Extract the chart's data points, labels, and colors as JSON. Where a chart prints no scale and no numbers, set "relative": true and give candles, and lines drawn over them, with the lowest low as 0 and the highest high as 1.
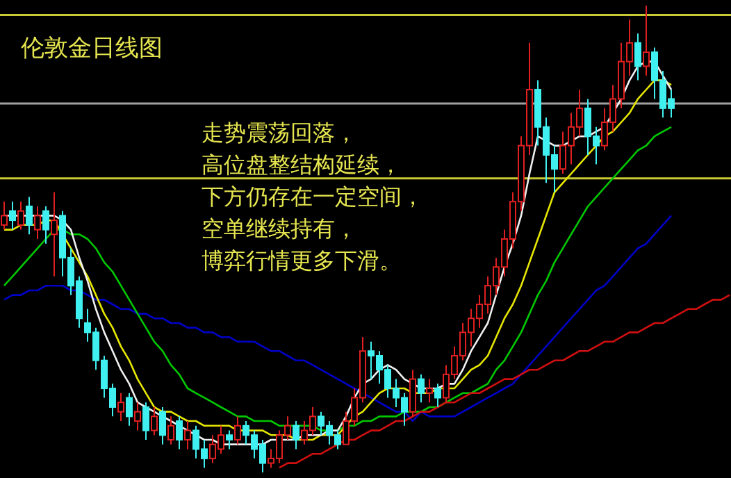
{
  "chart_data": {
    "type": "candlestick",
    "relative": true,
    "title": "伦敦金日线图",
    "annotations": [
      "走势震荡回落，",
      "高位盘整结构延续，",
      "下方仍存在一定空间，",
      "空单继续持有，",
      "博弈行情更多下滑。"
    ],
    "categories": [
      null,
      null,
      null,
      null,
      null,
      null,
      null,
      null,
      null,
      null,
      null,
      null,
      null,
      null,
      null,
      null,
      null,
      null,
      null,
      null,
      null,
      null,
      null,
      null,
      null,
      null,
      null,
      null,
      null,
      null,
      null,
      null,
      null,
      null,
      null,
      null,
      null,
      null,
      null,
      null,
      null,
      null,
      null,
      null,
      null,
      null,
      null,
      null,
      null,
      null,
      null,
      null,
      null,
      null,
      null,
      null,
      null,
      null,
      null,
      null,
      null,
      null,
      null,
      null,
      null,
      null,
      null,
      null,
      null,
      null,
      null,
      null,
      null,
      null,
      null,
      null,
      null,
      null,
      null,
      null,
      null,
      null,
      null,
      null,
      null,
      null,
      null,
      null
    ],
    "ohlc": [
      [
        0.53,
        0.58,
        0.52,
        0.55
      ],
      [
        0.56,
        0.58,
        0.52,
        0.54
      ],
      [
        0.53,
        0.58,
        0.52,
        0.56
      ],
      [
        0.57,
        0.59,
        0.51,
        0.53
      ],
      [
        0.52,
        0.57,
        0.5,
        0.55
      ],
      [
        0.56,
        0.57,
        0.49,
        0.52
      ],
      [
        0.51,
        0.6,
        0.42,
        0.54
      ],
      [
        0.55,
        0.56,
        0.42,
        0.46
      ],
      [
        0.46,
        0.48,
        0.38,
        0.4
      ],
      [
        0.41,
        0.42,
        0.31,
        0.33
      ],
      [
        0.32,
        0.35,
        0.28,
        0.3
      ],
      [
        0.3,
        0.31,
        0.22,
        0.24
      ],
      [
        0.24,
        0.25,
        0.16,
        0.18
      ],
      [
        0.18,
        0.19,
        0.12,
        0.14
      ],
      [
        0.13,
        0.17,
        0.11,
        0.15
      ],
      [
        0.16,
        0.17,
        0.1,
        0.12
      ],
      [
        0.11,
        0.15,
        0.09,
        0.13
      ],
      [
        0.14,
        0.15,
        0.07,
        0.09
      ],
      [
        0.09,
        0.14,
        0.08,
        0.12
      ],
      [
        0.13,
        0.14,
        0.06,
        0.08
      ],
      [
        0.07,
        0.12,
        0.06,
        0.1
      ],
      [
        0.11,
        0.12,
        0.05,
        0.07
      ],
      [
        0.07,
        0.11,
        0.05,
        0.09
      ],
      [
        0.09,
        0.1,
        0.03,
        0.05
      ],
      [
        0.05,
        0.07,
        0.01,
        0.03
      ],
      [
        0.03,
        0.08,
        0.02,
        0.06
      ],
      [
        0.05,
        0.1,
        0.04,
        0.08
      ],
      [
        0.08,
        0.09,
        0.05,
        0.07
      ],
      [
        0.07,
        0.12,
        0.06,
        0.1
      ],
      [
        0.1,
        0.11,
        0.06,
        0.08
      ],
      [
        0.08,
        0.09,
        0.03,
        0.05
      ],
      [
        0.06,
        0.07,
        0.0,
        0.02
      ],
      [
        0.02,
        0.05,
        0.01,
        0.03
      ],
      [
        0.03,
        0.09,
        0.02,
        0.08
      ],
      [
        0.08,
        0.12,
        0.07,
        0.1
      ],
      [
        0.1,
        0.11,
        0.05,
        0.07
      ],
      [
        0.07,
        0.11,
        0.06,
        0.09
      ],
      [
        0.09,
        0.14,
        0.08,
        0.12
      ],
      [
        0.12,
        0.13,
        0.08,
        0.1
      ],
      [
        0.1,
        0.11,
        0.06,
        0.08
      ],
      [
        0.08,
        0.09,
        0.05,
        0.06
      ],
      [
        0.06,
        0.13,
        0.06,
        0.11
      ],
      [
        0.11,
        0.18,
        0.1,
        0.16
      ],
      [
        0.16,
        0.29,
        0.15,
        0.26
      ],
      [
        0.26,
        0.28,
        0.2,
        0.25
      ],
      [
        0.25,
        0.26,
        0.19,
        0.22
      ],
      [
        0.22,
        0.23,
        0.16,
        0.18
      ],
      [
        0.18,
        0.2,
        0.14,
        0.16
      ],
      [
        0.16,
        0.17,
        0.1,
        0.13
      ],
      [
        0.13,
        0.22,
        0.12,
        0.2
      ],
      [
        0.2,
        0.21,
        0.15,
        0.17
      ],
      [
        0.17,
        0.2,
        0.15,
        0.18
      ],
      [
        0.18,
        0.19,
        0.14,
        0.16
      ],
      [
        0.16,
        0.23,
        0.15,
        0.21
      ],
      [
        0.21,
        0.27,
        0.2,
        0.25
      ],
      [
        0.25,
        0.32,
        0.24,
        0.3
      ],
      [
        0.3,
        0.35,
        0.27,
        0.33
      ],
      [
        0.33,
        0.38,
        0.31,
        0.36
      ],
      [
        0.36,
        0.42,
        0.34,
        0.4
      ],
      [
        0.4,
        0.46,
        0.38,
        0.44
      ],
      [
        0.44,
        0.52,
        0.42,
        0.5
      ],
      [
        0.5,
        0.6,
        0.48,
        0.58
      ],
      [
        0.58,
        0.72,
        0.56,
        0.7
      ],
      [
        0.7,
        0.92,
        0.68,
        0.82
      ],
      [
        0.82,
        0.84,
        0.7,
        0.74
      ],
      [
        0.74,
        0.76,
        0.62,
        0.68
      ],
      [
        0.68,
        0.7,
        0.6,
        0.65
      ],
      [
        0.65,
        0.73,
        0.64,
        0.7
      ],
      [
        0.7,
        0.77,
        0.66,
        0.74
      ],
      [
        0.74,
        0.82,
        0.72,
        0.78
      ],
      [
        0.78,
        0.8,
        0.68,
        0.72
      ],
      [
        0.72,
        0.74,
        0.66,
        0.7
      ],
      [
        0.7,
        0.78,
        0.69,
        0.75
      ],
      [
        0.75,
        0.83,
        0.73,
        0.8
      ],
      [
        0.8,
        0.92,
        0.78,
        0.88
      ],
      [
        0.88,
        0.97,
        0.85,
        0.92
      ],
      [
        0.92,
        0.94,
        0.84,
        0.87
      ],
      [
        0.87,
        1.0,
        0.85,
        0.9
      ],
      [
        0.9,
        0.91,
        0.8,
        0.84
      ],
      [
        0.84,
        0.86,
        0.76,
        0.78
      ],
      [
        0.8,
        0.82,
        0.76,
        0.78
      ],
      null,
      null,
      null,
      null,
      null,
      null,
      null
    ],
    "series": [
      {
        "type": "line",
        "color": "#0000c8",
        "values": [
          0.37,
          0.38,
          0.38,
          0.39,
          0.39,
          0.4,
          0.4,
          0.4,
          0.39,
          0.39,
          0.38,
          0.37,
          0.37,
          0.36,
          0.35,
          0.35,
          0.34,
          0.34,
          0.33,
          0.33,
          0.32,
          0.32,
          0.31,
          0.31,
          0.3,
          0.3,
          0.29,
          0.29,
          0.28,
          0.28,
          0.28,
          0.27,
          0.26,
          0.26,
          0.25,
          0.24,
          0.24,
          0.23,
          0.22,
          0.21,
          0.2,
          0.19,
          0.18,
          0.17,
          0.16,
          0.15,
          0.14,
          0.13,
          0.13,
          0.11,
          0.13,
          0.12,
          0.12,
          0.12,
          0.12,
          0.13,
          0.14,
          0.15,
          0.16,
          0.17,
          0.18,
          0.19,
          0.21,
          0.23,
          0.25,
          0.27,
          0.29,
          0.31,
          0.33,
          0.35,
          0.37,
          0.39,
          0.4,
          0.42,
          0.44,
          0.46,
          0.48,
          0.49,
          0.51,
          0.53,
          0.55,
          null,
          null,
          null,
          null,
          null,
          null,
          null
        ]
      },
      {
        "type": "line",
        "color": "#00c800",
        "values": [
          0.4,
          0.42,
          0.44,
          0.46,
          0.48,
          0.5,
          0.52,
          0.52,
          0.51,
          0.51,
          0.5,
          0.48,
          0.45,
          0.43,
          0.4,
          0.37,
          0.34,
          0.31,
          0.28,
          0.26,
          0.23,
          0.21,
          0.18,
          0.17,
          0.16,
          0.15,
          0.14,
          0.13,
          0.12,
          0.12,
          0.11,
          0.11,
          0.11,
          0.1,
          0.1,
          0.1,
          0.1,
          0.1,
          0.09,
          0.09,
          0.09,
          0.1,
          0.1,
          0.11,
          0.11,
          0.12,
          0.12,
          0.12,
          0.13,
          0.13,
          0.13,
          0.14,
          0.14,
          0.15,
          0.16,
          0.17,
          0.17,
          0.18,
          0.19,
          0.22,
          0.24,
          0.27,
          0.3,
          0.34,
          0.38,
          0.41,
          0.45,
          0.48,
          0.51,
          0.54,
          0.57,
          0.59,
          0.61,
          0.63,
          0.65,
          0.67,
          0.69,
          0.7,
          0.72,
          0.73,
          0.74,
          null,
          null,
          null,
          null,
          null,
          null,
          null
        ]
      },
      {
        "type": "line",
        "color": "#e6e600",
        "values": [
          0.52,
          0.52,
          0.53,
          0.53,
          0.53,
          0.54,
          0.54,
          0.51,
          0.48,
          0.45,
          0.42,
          0.38,
          0.34,
          0.31,
          0.27,
          0.24,
          0.2,
          0.17,
          0.14,
          0.13,
          0.13,
          0.12,
          0.11,
          0.11,
          0.1,
          0.1,
          0.1,
          0.1,
          0.09,
          0.09,
          0.09,
          0.09,
          0.08,
          0.08,
          0.08,
          0.07,
          0.07,
          0.07,
          0.08,
          0.08,
          0.08,
          0.1,
          0.12,
          0.13,
          0.15,
          0.17,
          0.18,
          0.18,
          0.18,
          0.17,
          0.17,
          0.17,
          0.18,
          0.18,
          0.18,
          0.2,
          0.22,
          0.23,
          0.25,
          0.29,
          0.33,
          0.36,
          0.4,
          0.45,
          0.5,
          0.55,
          0.6,
          0.62,
          0.64,
          0.66,
          0.68,
          0.7,
          0.72,
          0.73,
          0.75,
          0.77,
          0.8,
          0.82,
          0.84,
          0.84,
          0.83,
          null,
          null,
          null,
          null,
          null,
          null,
          null
        ]
      },
      {
        "type": "line",
        "color": "#f0f0f0",
        "values": [
          0.55,
          0.55,
          0.55,
          0.55,
          0.55,
          0.55,
          0.55,
          0.54,
          0.52,
          0.46,
          0.41,
          0.35,
          0.3,
          0.26,
          0.22,
          0.19,
          0.15,
          0.14,
          0.13,
          0.12,
          0.11,
          0.1,
          0.09,
          0.08,
          0.07,
          0.07,
          0.06,
          0.06,
          0.06,
          0.06,
          0.06,
          0.06,
          0.07,
          0.07,
          0.07,
          0.07,
          0.08,
          0.08,
          0.08,
          0.09,
          0.09,
          0.12,
          0.16,
          0.19,
          0.2,
          0.22,
          0.23,
          0.22,
          0.2,
          0.19,
          0.18,
          0.18,
          0.18,
          0.19,
          0.19,
          0.22,
          0.26,
          0.29,
          0.32,
          0.38,
          0.44,
          0.49,
          0.55,
          0.64,
          0.72,
          0.71,
          0.7,
          0.7,
          0.71,
          0.72,
          0.72,
          0.73,
          0.74,
          0.77,
          0.8,
          0.84,
          0.87,
          0.88,
          0.88,
          0.85,
          0.82,
          null,
          null,
          null,
          null,
          null,
          null,
          null
        ]
      },
      {
        "type": "line",
        "color": "#d01010",
        "values": [
          null,
          null,
          null,
          null,
          null,
          null,
          null,
          null,
          null,
          null,
          null,
          null,
          null,
          null,
          null,
          null,
          null,
          null,
          null,
          null,
          null,
          null,
          null,
          null,
          null,
          null,
          null,
          null,
          null,
          null,
          null,
          null,
          null,
          0.01,
          0.02,
          0.02,
          0.03,
          0.04,
          0.04,
          0.05,
          0.06,
          0.07,
          0.07,
          0.08,
          0.09,
          0.09,
          0.1,
          0.11,
          0.11,
          0.12,
          0.13,
          0.13,
          0.14,
          0.15,
          0.15,
          0.16,
          0.17,
          0.17,
          0.18,
          0.19,
          0.2,
          0.2,
          0.21,
          0.22,
          0.22,
          0.23,
          0.24,
          0.24,
          0.25,
          0.26,
          0.26,
          0.27,
          0.28,
          0.28,
          0.29,
          0.3,
          0.3,
          0.31,
          0.32,
          0.32,
          0.33,
          0.34,
          0.35,
          0.35,
          0.36,
          0.37,
          0.37,
          0.38
        ]
      }
    ],
    "ref_lines": [
      {
        "axis": "y",
        "value": 0.98,
        "color": "#c8c832"
      },
      {
        "axis": "y",
        "value": 0.79,
        "color": "#a0a0a0"
      },
      {
        "axis": "y",
        "value": 0.63,
        "color": "#c8c832"
      }
    ]
  }
}
